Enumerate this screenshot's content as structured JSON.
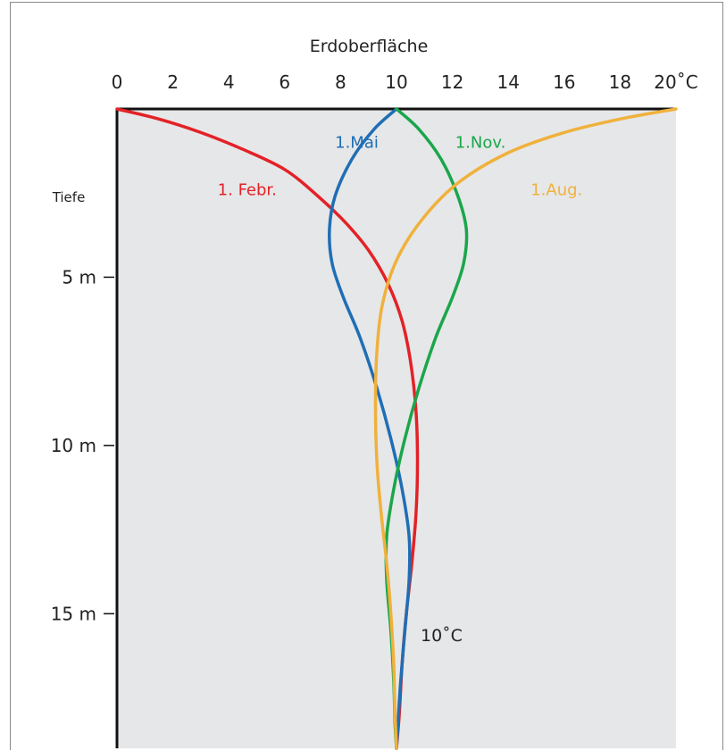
{
  "chart_data": {
    "type": "line",
    "title": "Erdoberfläche",
    "xlabel": "",
    "ylabel": "Tiefe",
    "xlim": [
      0,
      20
    ],
    "ylim": [
      0,
      19
    ],
    "x_ticks": [
      0,
      2,
      4,
      6,
      8,
      10,
      12,
      14,
      16,
      18,
      20
    ],
    "x_tick_labels": [
      "0",
      "2",
      "4",
      "6",
      "8",
      "10",
      "12",
      "14",
      "16",
      "18",
      "20˚C"
    ],
    "y_ticks": [
      5,
      10,
      15
    ],
    "y_tick_labels": [
      "5 m",
      "10 m",
      "15 m"
    ],
    "annotation": "10˚C",
    "background_color": "#e6e7e8",
    "series": [
      {
        "name": "1. Febr.",
        "color": "#e32227",
        "points": [
          [
            0,
            0
          ],
          [
            1.5,
            0.3
          ],
          [
            3,
            0.7
          ],
          [
            4.5,
            1.2
          ],
          [
            6,
            1.8
          ],
          [
            7.2,
            2.6
          ],
          [
            8.2,
            3.4
          ],
          [
            9,
            4.2
          ],
          [
            9.7,
            5.2
          ],
          [
            10.2,
            6.3
          ],
          [
            10.5,
            7.5
          ],
          [
            10.7,
            9
          ],
          [
            10.75,
            10.5
          ],
          [
            10.7,
            12
          ],
          [
            10.55,
            13.5
          ],
          [
            10.35,
            15
          ],
          [
            10.2,
            16.5
          ],
          [
            10.1,
            18
          ],
          [
            10,
            19
          ]
        ]
      },
      {
        "name": "1.Mai",
        "color": "#1f6eb5",
        "points": [
          [
            10,
            0
          ],
          [
            9.2,
            0.6
          ],
          [
            8.4,
            1.5
          ],
          [
            7.8,
            2.6
          ],
          [
            7.6,
            3.6
          ],
          [
            7.7,
            4.6
          ],
          [
            8.1,
            5.6
          ],
          [
            8.7,
            6.8
          ],
          [
            9.3,
            8.3
          ],
          [
            9.8,
            9.8
          ],
          [
            10.2,
            11.3
          ],
          [
            10.45,
            12.7
          ],
          [
            10.45,
            14
          ],
          [
            10.3,
            15.5
          ],
          [
            10.15,
            17
          ],
          [
            10.05,
            18.3
          ],
          [
            10,
            19
          ]
        ]
      },
      {
        "name": "1.Nov.",
        "color": "#1aa64b",
        "points": [
          [
            10,
            0
          ],
          [
            10.8,
            0.6
          ],
          [
            11.6,
            1.5
          ],
          [
            12.2,
            2.6
          ],
          [
            12.5,
            3.6
          ],
          [
            12.4,
            4.6
          ],
          [
            12,
            5.6
          ],
          [
            11.4,
            6.8
          ],
          [
            10.8,
            8.3
          ],
          [
            10.3,
            9.8
          ],
          [
            9.9,
            11.3
          ],
          [
            9.65,
            12.7
          ],
          [
            9.65,
            14
          ],
          [
            9.8,
            15.5
          ],
          [
            9.9,
            17
          ],
          [
            9.95,
            18.3
          ],
          [
            10,
            19
          ]
        ]
      },
      {
        "name": "1.Aug.",
        "color": "#f0b13c",
        "points": [
          [
            20,
            0
          ],
          [
            18,
            0.3
          ],
          [
            16,
            0.7
          ],
          [
            14,
            1.3
          ],
          [
            12.2,
            2.2
          ],
          [
            10.9,
            3.3
          ],
          [
            10,
            4.5
          ],
          [
            9.5,
            5.8
          ],
          [
            9.3,
            7.2
          ],
          [
            9.25,
            8.8
          ],
          [
            9.3,
            10.5
          ],
          [
            9.45,
            12
          ],
          [
            9.65,
            13.5
          ],
          [
            9.8,
            15
          ],
          [
            9.9,
            16.5
          ],
          [
            9.95,
            18
          ],
          [
            10,
            19
          ]
        ]
      }
    ],
    "series_label_anchors": [
      [
        3.6,
        2.4
      ],
      [
        7.8,
        1.0
      ],
      [
        12.1,
        1.0
      ],
      [
        14.8,
        2.4
      ]
    ]
  }
}
